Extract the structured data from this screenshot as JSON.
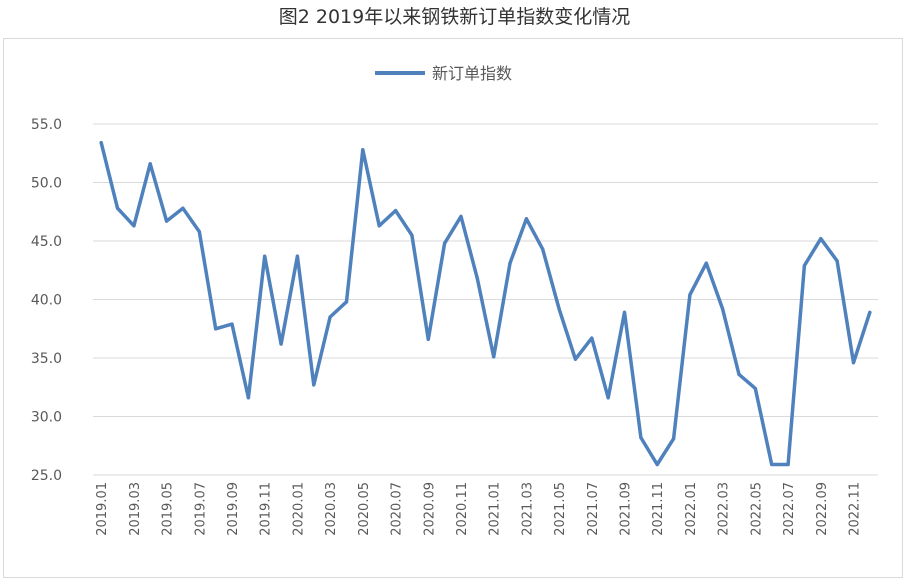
{
  "title": "图2  2019年以来钢铁新订单指数变化情况",
  "chart_data": {
    "type": "line",
    "title": "图2  2019年以来钢铁新订单指数变化情况",
    "xlabel": "",
    "ylabel": "",
    "ylim": [
      25.0,
      55.0
    ],
    "yticks": [
      "25.0",
      "30.0",
      "35.0",
      "40.0",
      "45.0",
      "50.0",
      "55.0"
    ],
    "grid": true,
    "legend_position": "top-center",
    "colors": {
      "series": "#4f81bd",
      "grid": "#d9d9d9"
    },
    "x": [
      "2019.01",
      "2019.02",
      "2019.03",
      "2019.04",
      "2019.05",
      "2019.06",
      "2019.07",
      "2019.08",
      "2019.09",
      "2019.10",
      "2019.11",
      "2019.12",
      "2020.01",
      "2020.02",
      "2020.03",
      "2020.04",
      "2020.05",
      "2020.06",
      "2020.07",
      "2020.08",
      "2020.09",
      "2020.10",
      "2020.11",
      "2020.12",
      "2021.01",
      "2021.02",
      "2021.03",
      "2021.04",
      "2021.05",
      "2021.06",
      "2021.07",
      "2021.08",
      "2021.09",
      "2021.10",
      "2021.11",
      "2021.12",
      "2022.01",
      "2022.02",
      "2022.03",
      "2022.04",
      "2022.05",
      "2022.06",
      "2022.07",
      "2022.08",
      "2022.09",
      "2022.10",
      "2022.11",
      "2022.12"
    ],
    "xtick_labels": [
      "2019.01",
      "2019.03",
      "2019.05",
      "2019.07",
      "2019.09",
      "2019.11",
      "2020.01",
      "2020.03",
      "2020.05",
      "2020.07",
      "2020.09",
      "2020.11",
      "2021.01",
      "2021.03",
      "2021.05",
      "2021.07",
      "2021.09",
      "2021.11",
      "2022.01",
      "2022.03",
      "2022.05",
      "2022.07",
      "2022.09",
      "2022.11"
    ],
    "series": [
      {
        "name": "新订单指数",
        "values": [
          53.4,
          47.8,
          46.3,
          51.6,
          46.7,
          47.8,
          45.8,
          37.5,
          37.9,
          31.6,
          43.7,
          36.2,
          43.7,
          32.7,
          38.5,
          39.8,
          52.8,
          46.3,
          47.6,
          45.5,
          36.6,
          44.8,
          47.1,
          41.8,
          35.1,
          43.1,
          46.9,
          44.3,
          39.2,
          34.9,
          36.7,
          31.6,
          38.9,
          28.2,
          25.9,
          28.1,
          40.4,
          43.1,
          39.2,
          33.6,
          32.4,
          25.9,
          25.9,
          42.9,
          45.2,
          43.3,
          34.6,
          38.9
        ]
      }
    ]
  }
}
